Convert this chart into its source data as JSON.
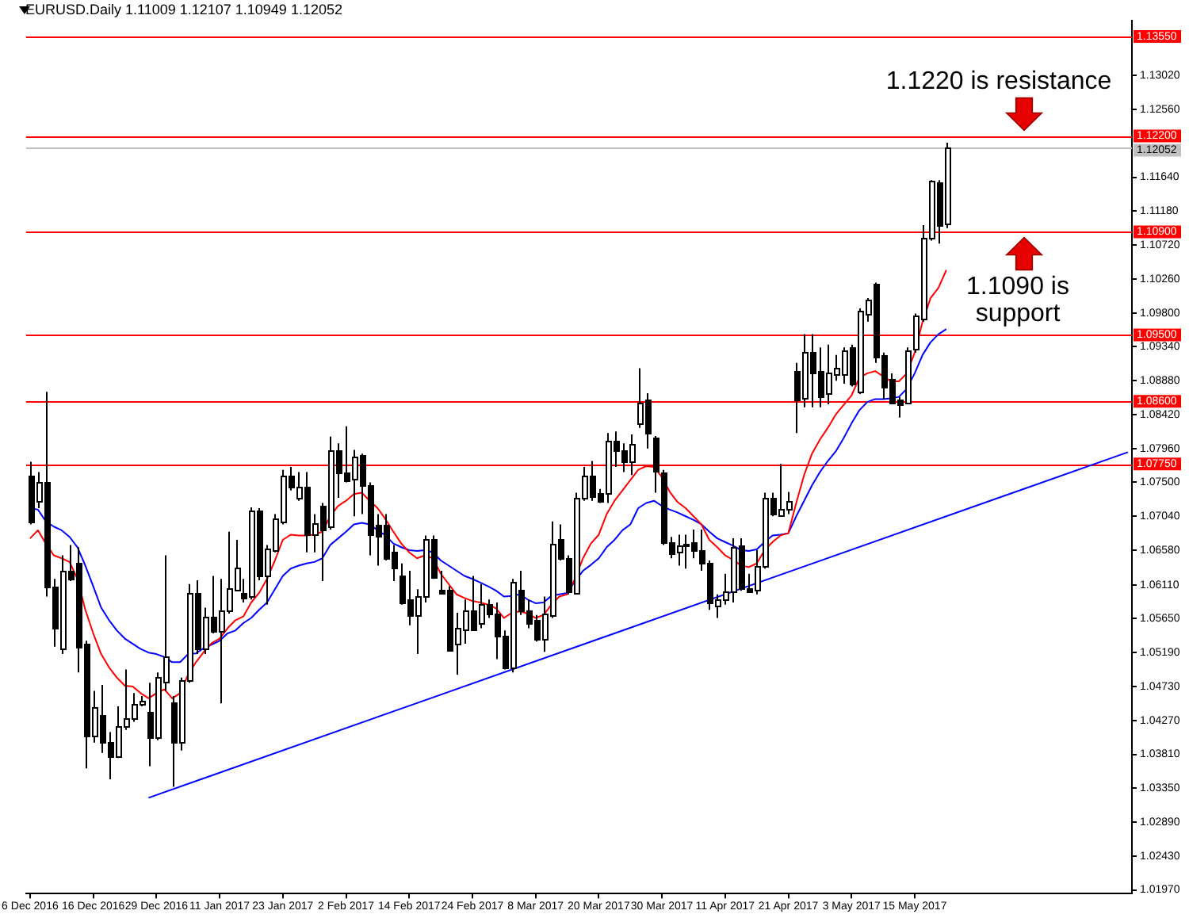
{
  "chart_data": {
    "type": "candlestick",
    "title": "EURUSD.Daily 1.11009 1.12107 1.10949 1.12052",
    "categories": [
      "6 Dec 2016",
      null,
      null,
      null,
      null,
      null,
      null,
      null,
      "16 Dec 2016",
      null,
      null,
      null,
      null,
      null,
      null,
      null,
      "29 Dec 2016",
      null,
      null,
      null,
      null,
      null,
      null,
      null,
      "11 Jan 2017",
      null,
      null,
      null,
      null,
      null,
      null,
      null,
      "23 Jan 2017",
      null,
      null,
      null,
      null,
      null,
      null,
      null,
      "2 Feb 2017",
      null,
      null,
      null,
      null,
      null,
      null,
      null,
      "14 Feb 2017",
      null,
      null,
      null,
      null,
      null,
      null,
      null,
      "24 Feb 2017",
      null,
      null,
      null,
      null,
      null,
      null,
      null,
      "8 Mar 2017",
      null,
      null,
      null,
      null,
      null,
      null,
      null,
      "20 Mar 2017",
      null,
      null,
      null,
      null,
      null,
      null,
      null,
      "30 Mar 2017",
      null,
      null,
      null,
      null,
      null,
      null,
      null,
      "11 Apr 2017",
      null,
      null,
      null,
      null,
      null,
      null,
      null,
      "21 Apr 2017",
      null,
      null,
      null,
      null,
      null,
      null,
      null,
      "3 May 2017",
      null,
      null,
      null,
      null,
      null,
      null,
      null,
      "15 May 2017",
      null,
      null,
      null,
      null,
      null,
      null,
      null,
      null,
      null,
      null,
      null,
      null,
      null,
      null,
      null,
      null,
      null,
      null,
      null,
      null,
      null,
      null,
      null,
      null,
      null,
      null,
      null
    ],
    "ohlc": [
      [
        1.076,
        1.0778,
        1.0693,
        1.0697
      ],
      [
        1.0725,
        1.0764,
        1.0715,
        1.075
      ],
      [
        1.075,
        1.0873,
        1.0595,
        1.0609
      ],
      [
        1.0609,
        1.0619,
        1.0527,
        1.0552
      ],
      [
        1.0524,
        1.0651,
        1.0517,
        1.063
      ],
      [
        1.063,
        1.0665,
        1.0616,
        1.0619
      ],
      [
        1.064,
        1.0662,
        1.0492,
        1.0527
      ],
      [
        1.053,
        1.0535,
        1.0362,
        1.0405
      ],
      [
        1.0407,
        1.0467,
        1.0397,
        1.0446
      ],
      [
        1.0434,
        1.0475,
        1.0383,
        1.0397
      ],
      [
        1.0398,
        1.0411,
        1.0347,
        1.0379
      ],
      [
        1.0379,
        1.0446,
        1.0376,
        1.0419
      ],
      [
        1.0418,
        1.0496,
        1.0414,
        1.0429
      ],
      [
        1.0431,
        1.0464,
        1.0425,
        1.045
      ],
      [
        1.0448,
        1.046,
        1.0446,
        1.0453
      ],
      [
        1.0439,
        1.0478,
        1.0365,
        1.0404
      ],
      [
        1.0404,
        1.0492,
        1.04,
        1.0485
      ],
      [
        1.0478,
        1.0651,
        1.0467,
        1.0513
      ],
      [
        1.0452,
        1.046,
        1.0337,
        1.0399
      ],
      [
        1.0399,
        1.0485,
        1.0386,
        1.0482
      ],
      [
        1.0482,
        1.0612,
        1.0478,
        1.06
      ],
      [
        1.06,
        1.0617,
        1.0517,
        1.0524
      ],
      [
        1.0524,
        1.058,
        1.0517,
        1.0568
      ],
      [
        1.0568,
        1.0623,
        1.0545,
        1.0549
      ],
      [
        1.0549,
        1.0619,
        1.045,
        1.0577
      ],
      [
        1.0577,
        1.0683,
        1.0572,
        1.0607
      ],
      [
        1.0605,
        1.0672,
        1.0602,
        1.0635
      ],
      [
        1.0599,
        1.0619,
        1.0587,
        1.0592
      ],
      [
        1.0595,
        1.0716,
        1.0591,
        1.0711
      ],
      [
        1.0711,
        1.0715,
        1.0617,
        1.0623
      ],
      [
        1.0623,
        1.0665,
        1.0584,
        1.066
      ],
      [
        1.0658,
        1.0707,
        1.0655,
        1.0702
      ],
      [
        1.0697,
        1.0767,
        1.0693,
        1.076
      ],
      [
        1.076,
        1.0771,
        1.0739,
        1.0744
      ],
      [
        1.0727,
        1.0764,
        1.0725,
        1.0743
      ],
      [
        1.0743,
        1.0764,
        1.0655,
        1.0679
      ],
      [
        1.0679,
        1.0707,
        1.0655,
        1.0695
      ],
      [
        1.0718,
        1.0722,
        1.0616,
        1.0686
      ],
      [
        1.069,
        1.0812,
        1.0686,
        1.0794
      ],
      [
        1.0794,
        1.0803,
        1.0729,
        1.0764
      ],
      [
        1.0764,
        1.0826,
        1.075,
        1.0753
      ],
      [
        1.0753,
        1.0794,
        1.0704,
        1.0784
      ],
      [
        1.0787,
        1.0789,
        1.0707,
        1.0746
      ],
      [
        1.0746,
        1.075,
        1.0651,
        1.0679
      ],
      [
        1.0693,
        1.0707,
        1.0637,
        1.0679
      ],
      [
        1.0693,
        1.0707,
        1.0644,
        1.0647
      ],
      [
        1.0655,
        1.0665,
        1.0616,
        1.0633
      ],
      [
        1.0624,
        1.064,
        1.0584,
        1.0587
      ],
      [
        1.0591,
        1.063,
        1.0556,
        1.057
      ],
      [
        1.057,
        1.0605,
        1.0517,
        1.0595
      ],
      [
        1.0595,
        1.0678,
        1.0587,
        1.0672
      ],
      [
        1.0674,
        1.0678,
        1.0619,
        1.0623
      ],
      [
        1.0605,
        1.063,
        1.0599,
        1.0601
      ],
      [
        1.0605,
        1.0609,
        1.0524,
        1.0524
      ],
      [
        1.053,
        1.0573,
        1.0489,
        1.0552
      ],
      [
        1.0552,
        1.0591,
        1.0531,
        1.0577
      ],
      [
        1.0577,
        1.0623,
        1.0549,
        1.0552
      ],
      [
        1.0558,
        1.0612,
        1.0552,
        1.0584
      ],
      [
        1.0584,
        1.0591,
        1.0566,
        1.0572
      ],
      [
        1.0573,
        1.0587,
        1.051,
        1.0542
      ],
      [
        1.0542,
        1.0549,
        1.0496,
        1.0499
      ],
      [
        1.0499,
        1.0619,
        1.0492,
        1.0616
      ],
      [
        1.0605,
        1.063,
        1.057,
        1.0577
      ],
      [
        1.0577,
        1.0591,
        1.0552,
        1.0559
      ],
      [
        1.0563,
        1.057,
        1.0534,
        1.0538
      ],
      [
        1.0538,
        1.0595,
        1.052,
        1.0573
      ],
      [
        1.057,
        1.0697,
        1.0566,
        1.0667
      ],
      [
        1.0672,
        1.0693,
        1.0644,
        1.0647
      ],
      [
        1.0647,
        1.0651,
        1.0598,
        1.0602
      ],
      [
        1.06,
        1.0736,
        1.0598,
        1.073
      ],
      [
        1.0729,
        1.0771,
        1.0725,
        1.076
      ],
      [
        1.076,
        1.0779,
        1.0725,
        1.0732
      ],
      [
        1.0736,
        1.0741,
        1.0722,
        1.0725
      ],
      [
        1.0736,
        1.0817,
        1.0722,
        1.0806
      ],
      [
        1.0806,
        1.0819,
        1.0771,
        1.0794
      ],
      [
        1.0794,
        1.0803,
        1.0764,
        1.0779
      ],
      [
        1.0779,
        1.0815,
        1.076,
        1.0803
      ],
      [
        1.0831,
        1.0905,
        1.0824,
        1.0859
      ],
      [
        1.0863,
        1.0871,
        1.0796,
        1.0817
      ],
      [
        1.081,
        1.0813,
        1.0736,
        1.0764
      ],
      [
        1.0764,
        1.0767,
        1.0665,
        1.0669
      ],
      [
        1.0669,
        1.0676,
        1.0647,
        1.0655
      ],
      [
        1.0657,
        1.0679,
        1.0637,
        1.0665
      ],
      [
        1.0665,
        1.0679,
        1.0633,
        1.0667
      ],
      [
        1.0669,
        1.0686,
        1.0647,
        1.0658
      ],
      [
        1.0658,
        1.0686,
        1.063,
        1.064
      ],
      [
        1.064,
        1.0644,
        1.0577,
        1.0587
      ],
      [
        1.0582,
        1.0598,
        1.0566,
        1.0591
      ],
      [
        1.0591,
        1.0626,
        1.0584,
        1.0602
      ],
      [
        1.0602,
        1.0674,
        1.0587,
        1.0662
      ],
      [
        1.0664,
        1.0674,
        1.0603,
        1.0605
      ],
      [
        1.0607,
        1.0626,
        1.0602,
        1.0603
      ],
      [
        1.0605,
        1.0658,
        1.0598,
        1.0637
      ],
      [
        1.0637,
        1.0736,
        1.0633,
        1.0729
      ],
      [
        1.0729,
        1.0736,
        1.0704,
        1.0707
      ],
      [
        1.0707,
        1.0775,
        1.0704,
        1.0715
      ],
      [
        1.0715,
        1.0737,
        1.0707,
        1.0725
      ],
      [
        1.0902,
        1.0912,
        1.0817,
        1.0863
      ],
      [
        1.0863,
        1.0951,
        1.0852,
        1.0926
      ],
      [
        1.0926,
        1.0951,
        1.0852,
        1.0898
      ],
      [
        1.0902,
        1.0933,
        1.0852,
        1.0868
      ],
      [
        1.087,
        1.0937,
        1.0856,
        1.0898
      ],
      [
        1.0897,
        1.0923,
        1.0888,
        1.0905
      ],
      [
        1.0898,
        1.0933,
        1.0884,
        1.093
      ],
      [
        1.0933,
        1.0937,
        1.088,
        1.0883
      ],
      [
        1.0873,
        1.0986,
        1.087,
        1.0983
      ],
      [
        1.0979,
        1.1,
        1.0968,
        1.0998
      ],
      [
        1.1019,
        1.1021,
        1.0912,
        1.0919
      ],
      [
        1.0923,
        1.0926,
        1.0863,
        1.088
      ],
      [
        1.0891,
        1.0898,
        1.0856,
        1.0859
      ],
      [
        1.0863,
        1.0866,
        1.0838,
        1.0857
      ],
      [
        1.0859,
        1.0933,
        1.0856,
        1.093
      ],
      [
        1.093,
        1.0979,
        1.0926,
        1.0976
      ],
      [
        1.0972,
        1.1099,
        1.0968,
        1.1081
      ],
      [
        1.1081,
        1.116,
        1.1078,
        1.1159
      ],
      [
        1.1158,
        1.116,
        1.1074,
        1.1099
      ],
      [
        1.1101,
        1.1211,
        1.1095,
        1.1205
      ],
      null,
      null,
      null,
      null,
      null,
      null,
      null,
      null,
      null,
      null,
      null,
      null,
      null,
      null,
      null,
      null,
      null,
      null,
      null,
      null,
      null,
      null,
      null
    ],
    "series": [
      {
        "type": "line",
        "color": "#ff0000",
        "values": [
          1.0674,
          1.0685,
          1.0667,
          1.0651,
          1.0647,
          1.0642,
          1.0619,
          1.0577,
          1.0545,
          1.0517,
          1.0499,
          1.0485,
          1.0474,
          1.0473,
          1.0464,
          1.0457,
          1.0464,
          1.0469,
          1.0457,
          1.0464,
          1.0489,
          1.0506,
          1.052,
          1.0532,
          1.0538,
          1.0552,
          1.0563,
          1.0568,
          1.0587,
          1.06,
          1.0619,
          1.0644,
          1.0672,
          1.0679,
          1.0678,
          1.0678,
          1.0679,
          1.0683,
          1.0704,
          1.0718,
          1.0725,
          1.0734,
          1.0736,
          1.0725,
          1.0715,
          1.07,
          1.0683,
          1.0667,
          1.0655,
          1.0647,
          1.0651,
          1.0647,
          1.0626,
          1.0612,
          1.0598,
          1.0593,
          1.0589,
          1.0587,
          1.0584,
          1.0579,
          1.0566,
          1.0573,
          1.0575,
          1.0572,
          1.0566,
          1.057,
          1.0584,
          1.0595,
          1.0598,
          1.0619,
          1.0647,
          1.0667,
          1.0679,
          1.0707,
          1.0725,
          1.0739,
          1.0753,
          1.0767,
          1.0772,
          1.0771,
          1.0757,
          1.0737,
          1.0723,
          1.0715,
          1.0704,
          1.0693,
          1.0672,
          1.0662,
          1.0651,
          1.0645,
          1.0637,
          1.0635,
          1.064,
          1.0658,
          1.0669,
          1.0678,
          1.0681,
          1.0722,
          1.076,
          1.0789,
          1.0808,
          1.0824,
          1.0842,
          1.0855,
          1.0868,
          1.0892,
          1.0898,
          1.0901,
          1.0894,
          1.0887,
          1.0887,
          1.0898,
          1.0926,
          1.0968,
          1.1,
          1.1014,
          1.1038,
          null,
          null,
          null,
          null,
          null,
          null,
          null,
          null,
          null,
          null,
          null,
          null,
          null,
          null,
          null,
          null,
          null,
          null,
          null,
          null,
          null,
          null,
          null
        ]
      },
      {
        "type": "line",
        "color": "#0000ff",
        "values": [
          1.0715,
          1.0713,
          1.0697,
          1.069,
          1.0685,
          1.0676,
          1.0662,
          1.0637,
          1.0609,
          1.058,
          1.0563,
          1.0549,
          1.0538,
          1.0531,
          1.0524,
          1.0519,
          1.0517,
          1.0513,
          1.0506,
          1.0506,
          1.0517,
          1.0518,
          1.0525,
          1.053,
          1.0535,
          1.0545,
          1.0549,
          1.0559,
          1.0566,
          1.0577,
          1.0587,
          1.0605,
          1.0623,
          1.0633,
          1.0637,
          1.064,
          1.0642,
          1.0647,
          1.0665,
          1.0674,
          1.0683,
          1.0693,
          1.0695,
          1.0693,
          1.0685,
          1.0678,
          1.0667,
          1.0662,
          1.0658,
          1.0657,
          1.0658,
          1.0655,
          1.0644,
          1.0637,
          1.063,
          1.0623,
          1.0619,
          1.0614,
          1.0609,
          1.0603,
          1.0595,
          1.0596,
          1.0598,
          1.0591,
          1.0586,
          1.0587,
          1.0596,
          1.0598,
          1.06,
          1.0616,
          1.063,
          1.0638,
          1.0647,
          1.0662,
          1.0672,
          1.0685,
          1.0693,
          1.0715,
          1.0722,
          1.0725,
          1.0718,
          1.0713,
          1.0709,
          1.0704,
          1.0699,
          1.0693,
          1.0683,
          1.0674,
          1.0669,
          1.0664,
          1.0658,
          1.0657,
          1.0659,
          1.0669,
          1.0678,
          1.0679,
          1.0681,
          1.0704,
          1.0725,
          1.0746,
          1.0764,
          1.0779,
          1.0792,
          1.081,
          1.083,
          1.0848,
          1.0859,
          1.0863,
          1.0863,
          1.0864,
          1.0866,
          1.0877,
          1.0898,
          1.0923,
          1.094,
          1.0951,
          1.0958,
          null,
          null,
          null,
          null,
          null,
          null,
          null,
          null,
          null,
          null,
          null,
          null,
          null,
          null,
          null,
          null,
          null,
          null,
          null,
          null,
          null,
          null,
          null
        ]
      },
      {
        "type": "line",
        "color": "#0000ff",
        "values": [
          null,
          null,
          null,
          null,
          null,
          null,
          null,
          null,
          null,
          null,
          null,
          null,
          null,
          null,
          null,
          1.0322,
          null,
          null,
          null,
          null,
          null,
          null,
          null,
          null,
          null,
          null,
          null,
          null,
          null,
          null,
          null,
          null,
          null,
          null,
          null,
          null,
          null,
          null,
          null,
          null,
          null,
          null,
          null,
          null,
          null,
          null,
          null,
          null,
          null,
          null,
          null,
          null,
          null,
          null,
          null,
          null,
          null,
          null,
          null,
          null,
          null,
          null,
          null,
          null,
          null,
          null,
          null,
          null,
          null,
          null,
          null,
          null,
          null,
          null,
          null,
          null,
          null,
          null,
          null,
          null,
          null,
          null,
          null,
          null,
          null,
          null,
          null,
          null,
          null,
          null,
          null,
          null,
          null,
          null,
          null,
          null,
          null,
          null,
          null,
          null,
          null,
          null,
          null,
          null,
          null,
          null,
          null,
          null,
          null,
          null,
          null,
          null,
          null,
          null,
          null,
          null,
          null,
          null,
          null,
          null,
          null,
          null,
          null,
          null,
          null,
          null,
          null,
          null,
          null,
          null,
          null,
          null,
          null,
          null,
          null,
          null,
          null,
          null,
          null,
          1.0791
        ]
      }
    ],
    "ylim": [
      1.0192,
      1.1377
    ],
    "yticks": [
      {
        "value": 1.0197,
        "label": "1.01970"
      },
      {
        "value": 1.0243,
        "label": "1.02430"
      },
      {
        "value": 1.0289,
        "label": "1.02890"
      },
      {
        "value": 1.0335,
        "label": "1.03350"
      },
      {
        "value": 1.0381,
        "label": "1.03810"
      },
      {
        "value": 1.0427,
        "label": "1.04270"
      },
      {
        "value": 1.0473,
        "label": "1.04730"
      },
      {
        "value": 1.0519,
        "label": "1.05190"
      },
      {
        "value": 1.0565,
        "label": "1.05650"
      },
      {
        "value": 1.0611,
        "label": "1.06110"
      },
      {
        "value": 1.0658,
        "label": "1.06580"
      },
      {
        "value": 1.0704,
        "label": "1.07040"
      },
      {
        "value": 1.075,
        "label": "1.07500"
      },
      {
        "value": 1.0796,
        "label": "1.07960"
      },
      {
        "value": 1.0842,
        "label": "1.08420"
      },
      {
        "value": 1.0888,
        "label": "1.08880"
      },
      {
        "value": 1.0934,
        "label": "1.09340"
      },
      {
        "value": 1.098,
        "label": "1.09800"
      },
      {
        "value": 1.1026,
        "label": "1.10260"
      },
      {
        "value": 1.1072,
        "label": "1.10720"
      },
      {
        "value": 1.1118,
        "label": "1.11180"
      },
      {
        "value": 1.1164,
        "label": "1.11640"
      },
      {
        "value": 1.1256,
        "label": "1.12560"
      },
      {
        "value": 1.1302,
        "label": "1.13020"
      }
    ],
    "ref_lines": [
      {
        "axis": "y",
        "value": 1.1355,
        "label": "1.13550",
        "color": "#ff0000"
      },
      {
        "axis": "y",
        "value": 1.122,
        "label": "1.12200",
        "color": "#ff0000"
      },
      {
        "axis": "y",
        "value": 1.12052,
        "label": "1.12052",
        "color": "#c0c0c0"
      },
      {
        "axis": "y",
        "value": 1.109,
        "label": "1.10900",
        "color": "#ff0000"
      },
      {
        "axis": "y",
        "value": 1.095,
        "label": "1.09500",
        "color": "#ff0000"
      },
      {
        "axis": "y",
        "value": 1.086,
        "label": "1.08600",
        "color": "#ff0000"
      },
      {
        "axis": "y",
        "value": 1.0775,
        "label": "1.07750",
        "color": "#ff0000"
      }
    ],
    "annotations": [
      {
        "text": "1.1220 is resistance",
        "y": 1.122
      },
      {
        "text": "1.1090 is support",
        "y": 1.109
      }
    ],
    "marker": "none",
    "line_style": "solid"
  }
}
